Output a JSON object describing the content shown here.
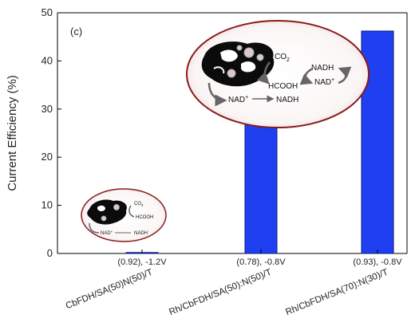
{
  "chart_data": {
    "type": "bar",
    "panel_label": "(c)",
    "ylabel": "Current Efficiency (%)",
    "xlabel": "",
    "ylim": [
      0,
      50
    ],
    "yticks": [
      0,
      10,
      20,
      30,
      40,
      50
    ],
    "grid": false,
    "bar_color": "#1f3ff0",
    "categories": [
      "CbFDH/SA(50)N(50)/T",
      "Rh/CbFDH/SA(50):N(50)/T",
      "Rh/CbFDH/SA(70):N(30)/T"
    ],
    "condition_labels": [
      "(0.92), -1.2V",
      "(0.78), -0.8V",
      "(0.93), -0.8V"
    ],
    "values": [
      0.2,
      27.6,
      46.2
    ]
  },
  "inset_large": {
    "co2": "CO",
    "co2_sub": "2",
    "hcooh": "HCOOH",
    "nad": "NAD",
    "nad_sup": "+",
    "nadh": "NADH",
    "cycle_top": "NADH",
    "cycle_bottom": "NAD",
    "cycle_bottom_sup": "+"
  },
  "inset_small": {
    "co2": "CO",
    "co2_sub": "2",
    "hcooh": "HCOOH",
    "nad": "NAD",
    "nad_sup": "+",
    "nadh": "NADH"
  }
}
